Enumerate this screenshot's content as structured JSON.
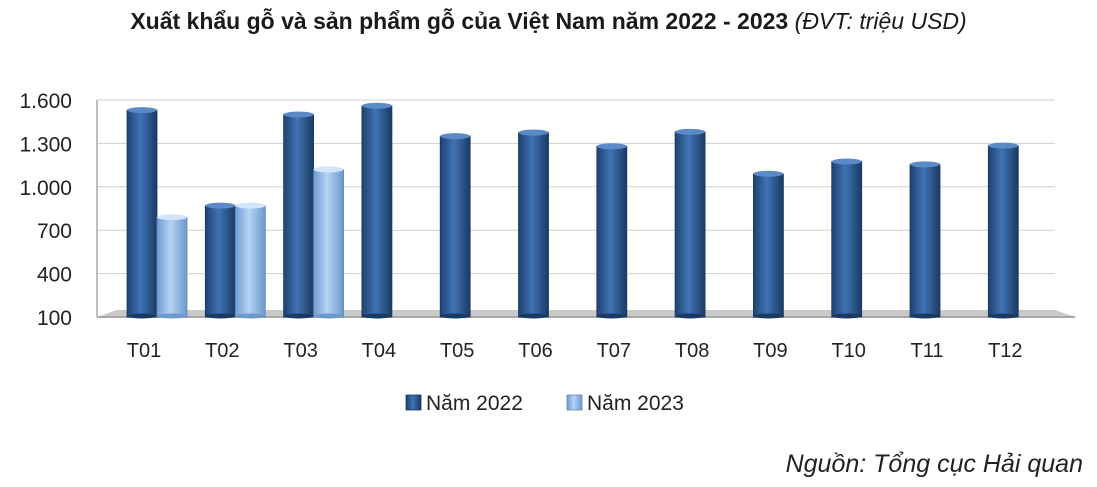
{
  "chart_data": {
    "type": "bar",
    "title": "Xuất khẩu gỗ và sản phẩm gỗ của Việt Nam năm 2022 - 2023",
    "unit_note": "(ĐVT: triệu USD)",
    "categories": [
      "T01",
      "T02",
      "T03",
      "T04",
      "T05",
      "T06",
      "T07",
      "T08",
      "T09",
      "T10",
      "T11",
      "T12"
    ],
    "series": [
      {
        "name": "Năm 2022",
        "color": "#2e5d97",
        "values": [
          1530,
          870,
          1500,
          1560,
          1350,
          1375,
          1280,
          1380,
          1090,
          1175,
          1155,
          1285
        ]
      },
      {
        "name": "Năm 2023",
        "color": "#8eb7e8",
        "values": [
          790,
          870,
          1120,
          null,
          null,
          null,
          null,
          null,
          null,
          null,
          null,
          null
        ]
      }
    ],
    "y_ticks": [
      "1.600",
      "1.300",
      "1.000",
      "700",
      "400",
      "100"
    ],
    "y_tick_values": [
      1600,
      1300,
      1000,
      700,
      400,
      100
    ],
    "ylim": [
      100,
      1600
    ],
    "grid": true,
    "legend_position": "bottom"
  },
  "source_note": "Nguồn: Tổng cục Hải quan"
}
